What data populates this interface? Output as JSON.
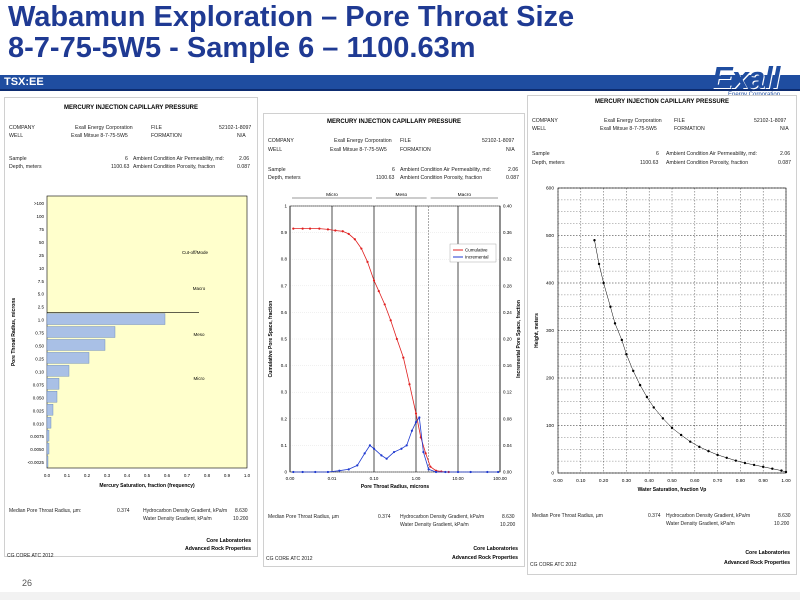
{
  "header": {
    "title_line1": "Wabamun Exploration – Pore Throat Size",
    "title_line2": "8-7-75-5W5 - Sample 6 – 1100.63m",
    "bar_label": "TSX:EE",
    "logo_text": "Exall",
    "logo_sub": "Energy Corporation",
    "page_number": "26",
    "brand_color": "#1f4da0",
    "title_color": "#1f3a93"
  },
  "panel1": {
    "title": "MERCURY INJECTION CAPILLARY PRESSURE",
    "company_label": "COMPANY",
    "company_value": "Exall Energy Corporation",
    "file_label": "FILE",
    "file_value": "52102-1-8097",
    "well_label": "WELL",
    "well_value": "Exall Mitsue 8-7-75-5W5",
    "formation_label": "FORMATION",
    "formation_value": "N/A",
    "sample_label": "Sample",
    "sample_value": "6",
    "perm_label": "Ambient Condition Air Permeability, md:",
    "perm_value": "2.06",
    "depth_label": "Depth, meters",
    "depth_value": "1100.63",
    "poro_label": "Ambient Condition Porosity, fraction",
    "poro_value": "0.087",
    "foot_median": "Median Pore Throat Radius, µm:",
    "foot_median_value": "0.374",
    "foot_hc": "Hydrocarbon Density Gradient, kPa/m",
    "foot_hc_value": "8.630",
    "foot_water": "Water Density Gradient, kPa/m",
    "foot_water_value": "10.200",
    "core1": "Core Laboratories",
    "core2": "Advanced Rock Properties",
    "code": "CG CORE ATC 2012"
  },
  "panel2": {
    "title": "MERCURY INJECTION CAPILLARY PRESSURE",
    "company_label": "COMPANY",
    "company_value": "Exall Energy Corporation",
    "file_label": "FILE",
    "file_value": "52102-1-8097",
    "well_label": "WELL",
    "well_value": "Exall Mitsue 8-7-75-5W5",
    "formation_label": "FORMATION",
    "formation_value": "N/A",
    "sample_label": "Sample",
    "sample_value": "6",
    "perm_label": "Ambient Condition Air Permeability, md:",
    "perm_value": "2.06",
    "depth_label": "Depth, meters",
    "depth_value": "1100.63",
    "poro_label": "Ambient Condition Porosity, fraction",
    "poro_value": "0.087",
    "zone_micro": "Micro",
    "zone_meso": "Meso",
    "zone_macro": "Macro",
    "foot_median": "Median Pore Throat Radius, µm",
    "foot_median_value": "0.374",
    "foot_hc": "Hydrocarbon Density Gradient, kPa/m",
    "foot_hc_value": "8.630",
    "foot_water": "Water Density Gradient, kPa/m",
    "foot_water_value": "10.200",
    "core1": "Core Laboratories",
    "core2": "Advanced Rock Properties",
    "code": "CG CORE ATC 2012"
  },
  "panel3": {
    "title": "MERCURY INJECTION CAPILLARY PRESSURE",
    "company_label": "COMPANY",
    "company_value": "Exall Energy Corporation",
    "file_label": "FILE",
    "file_value": "52102-1-8097",
    "well_label": "WELL",
    "well_value": "Exall Mitsue 8-7-75-5W5",
    "formation_label": "FORMATION",
    "formation_value": "N/A",
    "sample_label": "Sample",
    "sample_value": "6",
    "perm_label": "Ambient Condition Air Permeability, md:",
    "perm_value": "2.06",
    "depth_label": "Depth, meters",
    "depth_value": "1100.63",
    "poro_label": "Ambient Condition Porosity, fraction",
    "poro_value": "0.087",
    "foot_median": "Median Pore Throat Radius, µm",
    "foot_median_value": "0.374",
    "foot_hc": "Hydrocarbon Density Gradient, kPa/m",
    "foot_hc_value": "8.630",
    "foot_water": "Water Density Gradient, kPa/m",
    "foot_water_value": "10.200",
    "core1": "Core Laboratories",
    "core2": "Advanced Rock Properties",
    "code": "CG CORE ATC 2012"
  },
  "chart_data": [
    {
      "type": "bar",
      "orientation": "horizontal",
      "xlabel": "Mercury Saturation, fraction (frequency)",
      "ylabel": "Pore Throat Radius, microns",
      "xticks": [
        "0.0",
        "0.1",
        "0.2",
        "0.3",
        "0.4",
        "0.5",
        "0.6",
        "0.7",
        "0.8",
        "0.9",
        "1.0"
      ],
      "categories": [
        ">100",
        "100",
        "75",
        "50",
        "25",
        "10",
        "7.5",
        "5.0",
        "2.5",
        "1.0",
        "0.75",
        "0.50",
        "0.25",
        "0.10",
        "0.075",
        "0.050",
        "0.025",
        "0.010",
        "0.0075",
        "0.0050",
        "<0.0025"
      ],
      "values": [
        0,
        0,
        0,
        0,
        0,
        0,
        0,
        0,
        0,
        0.59,
        0.34,
        0.29,
        0.21,
        0.11,
        0.06,
        0.05,
        0.03,
        0.02,
        0.01,
        0.01,
        0.005
      ],
      "xlim": [
        0,
        1
      ],
      "annotations": [
        "Cut-off/Mode",
        "Macro",
        "Meso",
        "Micro"
      ],
      "bar_color": "#a9c0e6",
      "plot_background": "#ffffcc",
      "separator_after_category": "2.5"
    },
    {
      "type": "line",
      "xlabel": "Pore Throat Radius, microns",
      "ylabel": "Cumulative Pore Space, fraction",
      "y2label": "Incremental Pore Space, fraction",
      "x_scale": "log",
      "xlim": [
        0.001,
        100
      ],
      "ylim": [
        0,
        1
      ],
      "y2lim": [
        0,
        0.4
      ],
      "xticks": [
        "0.00",
        "0.01",
        "0.10",
        "1.00",
        "10.00",
        "100.00"
      ],
      "yticks": [
        "0",
        "0.1",
        "0.2",
        "0.3",
        "0.4",
        "0.5",
        "0.6",
        "0.7",
        "0.8",
        "0.9",
        "1"
      ],
      "y2ticks": [
        "0.00",
        "0.04",
        "0.08",
        "0.12",
        "0.16",
        "0.20",
        "0.24",
        "0.28",
        "0.32",
        "0.36",
        "0.40"
      ],
      "legend": "top-right",
      "zones": [
        "Micro",
        "Meso",
        "Macro"
      ],
      "series": [
        {
          "name": "Cumulative",
          "axis": "left",
          "color": "#e02020",
          "x": [
            0.0012,
            0.002,
            0.003,
            0.005,
            0.008,
            0.012,
            0.018,
            0.025,
            0.035,
            0.05,
            0.07,
            0.1,
            0.13,
            0.18,
            0.25,
            0.35,
            0.5,
            0.7,
            1.0,
            1.3,
            1.7,
            2.2,
            3,
            4,
            6
          ],
          "values": [
            0.915,
            0.915,
            0.915,
            0.915,
            0.912,
            0.908,
            0.905,
            0.895,
            0.875,
            0.84,
            0.79,
            0.72,
            0.68,
            0.63,
            0.57,
            0.5,
            0.43,
            0.33,
            0.22,
            0.13,
            0.07,
            0.02,
            0.005,
            0.002,
            0.0
          ]
        },
        {
          "name": "Incremental",
          "axis": "right",
          "color": "#1f3ad0",
          "x": [
            0.0012,
            0.002,
            0.004,
            0.008,
            0.015,
            0.025,
            0.04,
            0.06,
            0.08,
            0.1,
            0.15,
            0.2,
            0.3,
            0.45,
            0.6,
            0.8,
            1.0,
            1.2,
            1.5,
            2,
            3,
            5,
            10,
            20,
            50,
            90
          ],
          "values": [
            0,
            0,
            0,
            0,
            0.002,
            0.004,
            0.01,
            0.028,
            0.04,
            0.035,
            0.025,
            0.02,
            0.03,
            0.035,
            0.04,
            0.062,
            0.075,
            0.082,
            0.03,
            0.004,
            0,
            0,
            0,
            0,
            0,
            0
          ]
        }
      ]
    },
    {
      "type": "scatter",
      "xlabel": "Water Saturation, fraction Vp",
      "ylabel": "Height, meters",
      "xlim": [
        0,
        1
      ],
      "ylim": [
        0,
        600
      ],
      "xticks": [
        "0.00",
        "0.10",
        "0.20",
        "0.30",
        "0.40",
        "0.50",
        "0.60",
        "0.70",
        "0.80",
        "0.90",
        "1.00"
      ],
      "yticks": [
        "0",
        "100",
        "200",
        "300",
        "400",
        "500",
        "600"
      ],
      "series": [
        {
          "x": [
            0.16,
            0.18,
            0.2,
            0.23,
            0.25,
            0.28,
            0.3,
            0.33,
            0.36,
            0.39,
            0.42,
            0.46,
            0.5,
            0.54,
            0.58,
            0.62,
            0.66,
            0.7,
            0.74,
            0.78,
            0.82,
            0.86,
            0.9,
            0.94,
            0.98,
            1.0
          ],
          "values": [
            490,
            440,
            400,
            350,
            315,
            280,
            250,
            215,
            185,
            160,
            138,
            115,
            95,
            80,
            66,
            55,
            46,
            38,
            32,
            26,
            21,
            17,
            13,
            9,
            5,
            2
          ],
          "color": "#000000"
        }
      ]
    }
  ]
}
